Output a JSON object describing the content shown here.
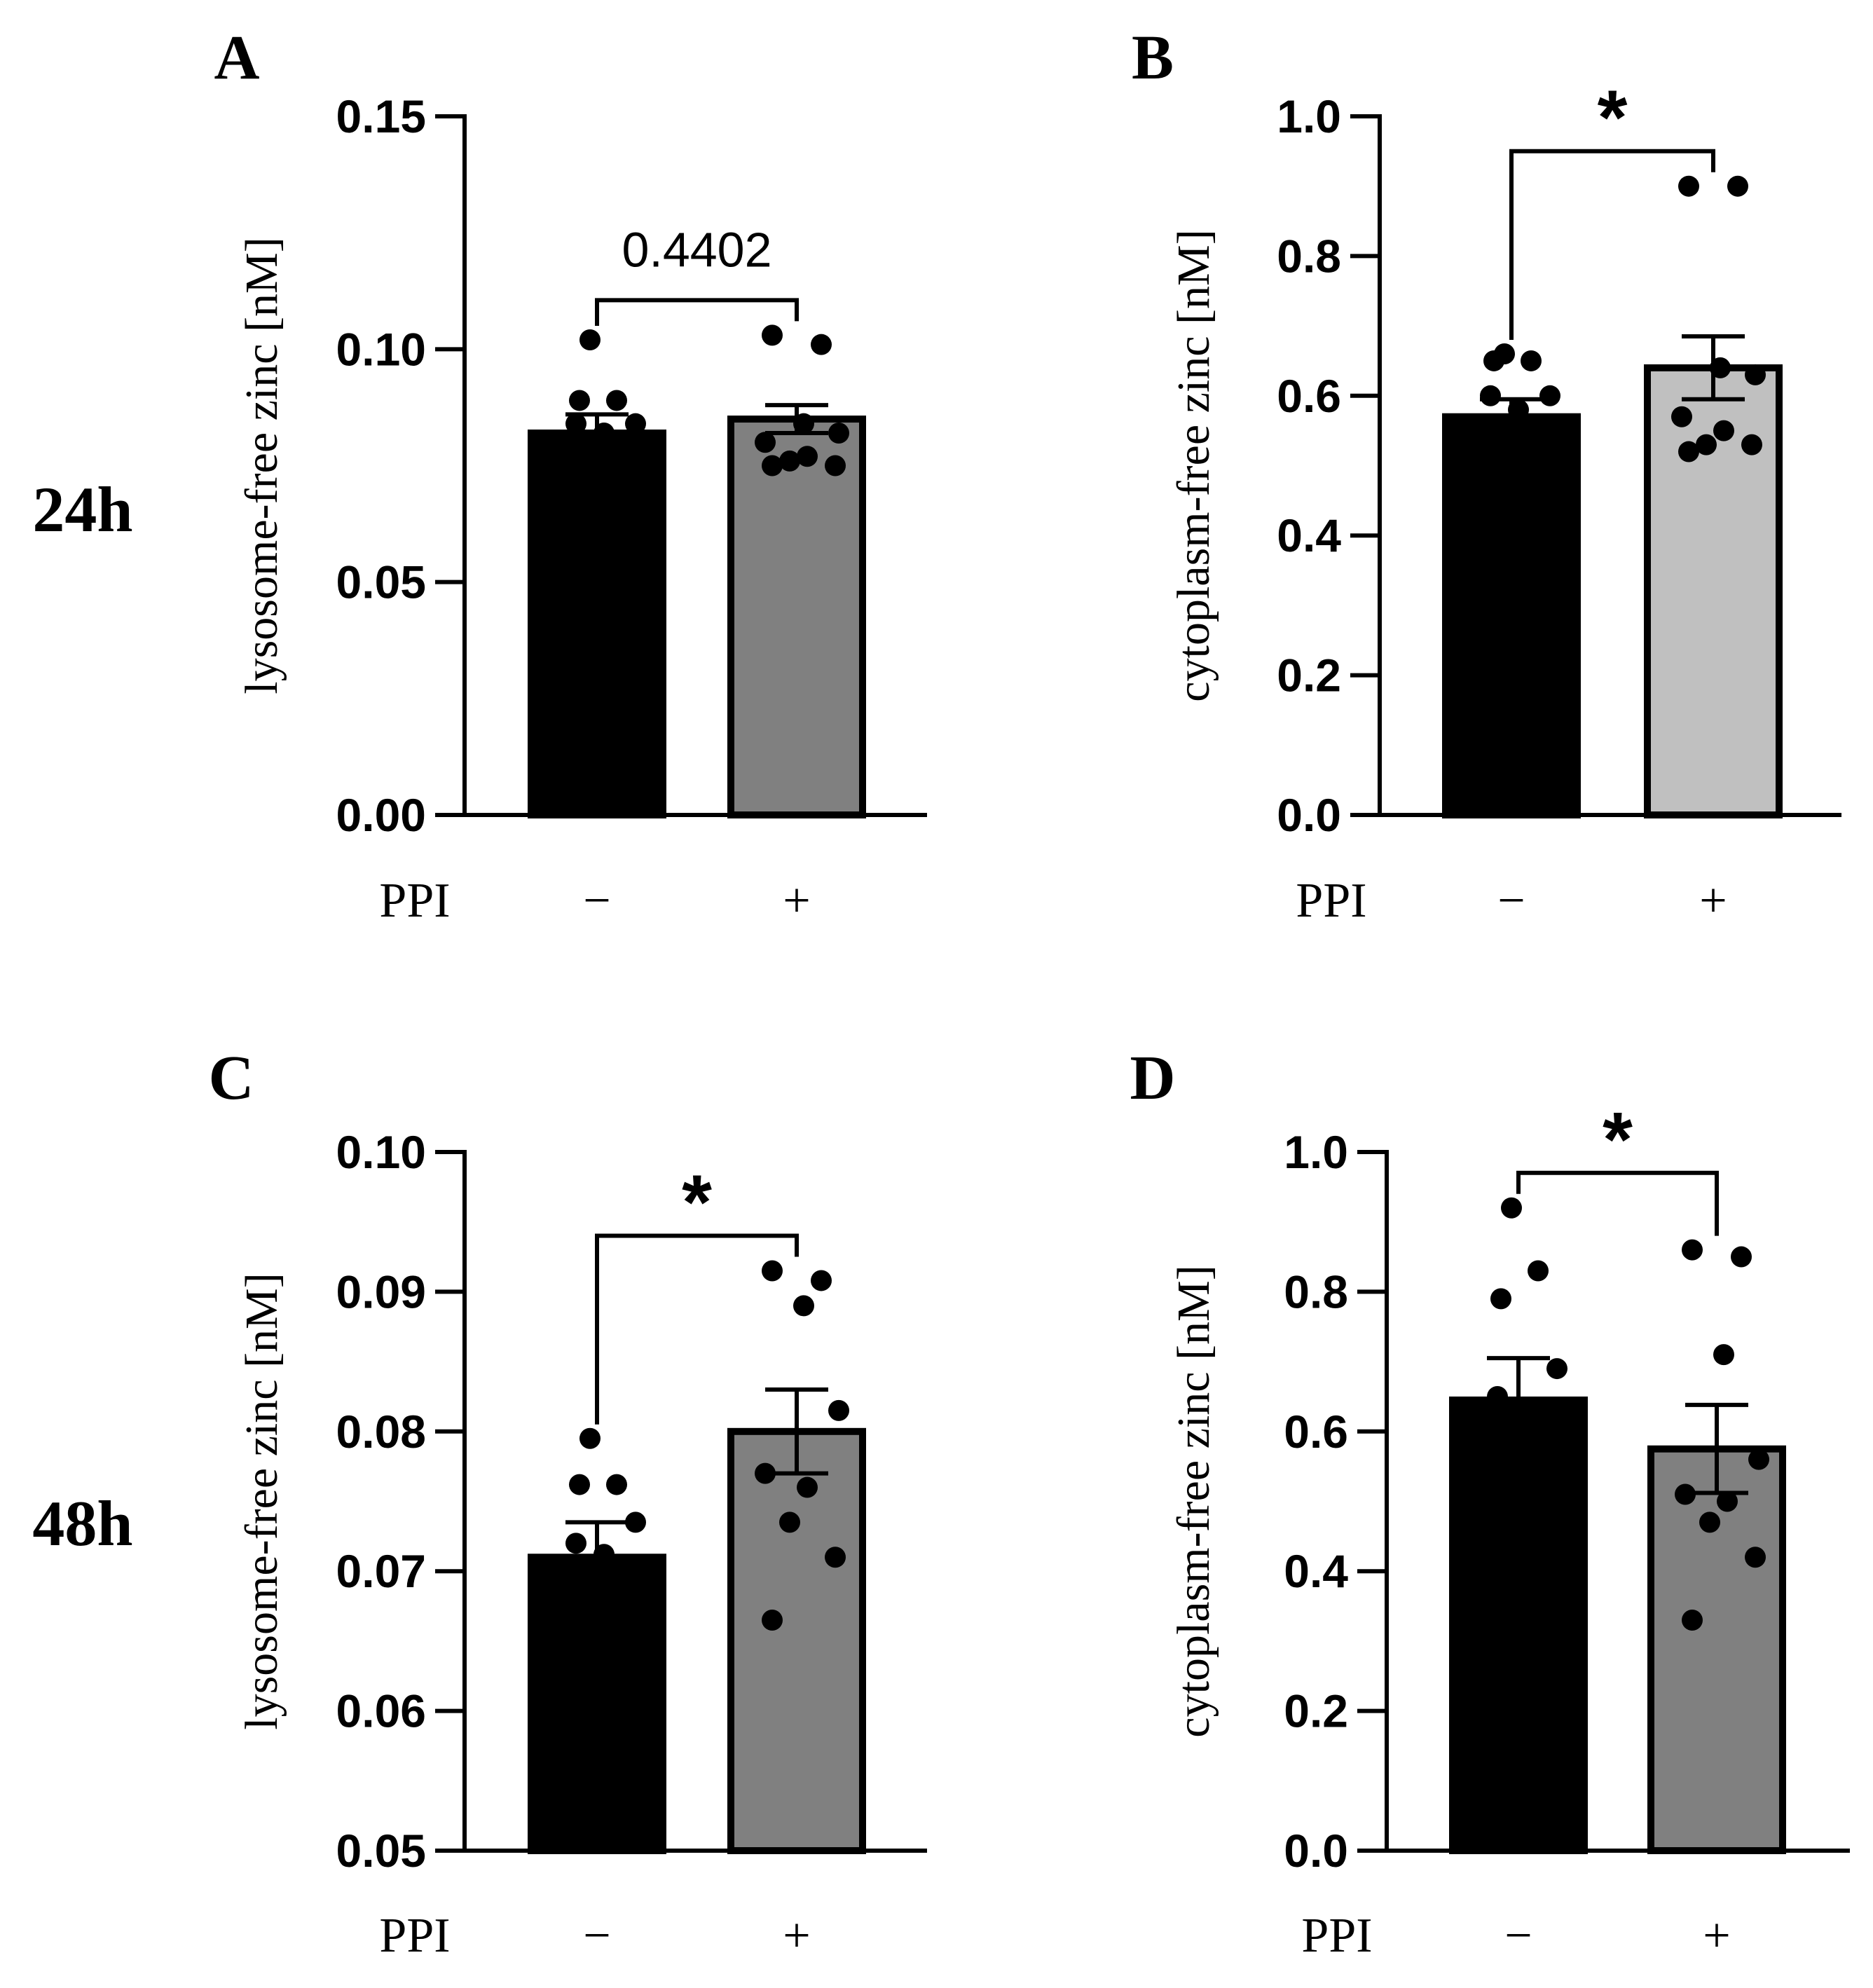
{
  "figure": {
    "row_labels": [
      "24h",
      "48h"
    ],
    "condition_label": "PPI",
    "condition_levels": [
      "−",
      "+"
    ]
  },
  "chart_data": [
    {
      "id": "A",
      "type": "bar",
      "panel_letter": "A",
      "ylabel": "lysosome-free zinc [nM]",
      "ylim": [
        0,
        0.15
      ],
      "yticks": [
        0.0,
        0.05,
        0.1,
        0.15
      ],
      "ytick_labels": [
        "0.00",
        "0.05",
        "0.10",
        "0.15"
      ],
      "categories": [
        "−",
        "+"
      ],
      "values": [
        0.082,
        0.085
      ],
      "errors": [
        0.004,
        0.003
      ],
      "bar_colors": [
        "#000000",
        "#808080"
      ],
      "points": [
        [
          0.102,
          0.089,
          0.089,
          0.084,
          0.084,
          0.082
        ],
        [
          0.103,
          0.101,
          0.084,
          0.082,
          0.08,
          0.077,
          0.076,
          0.075,
          0.075
        ]
      ],
      "significance": "0.4402"
    },
    {
      "id": "B",
      "type": "bar",
      "panel_letter": "B",
      "ylabel": "cytoplasm-free zinc  [nM]",
      "ylim": [
        0,
        1.0
      ],
      "yticks": [
        0.0,
        0.2,
        0.4,
        0.6,
        0.8,
        1.0
      ],
      "ytick_labels": [
        "0.0",
        "0.2",
        "0.4",
        "0.6",
        "0.8",
        "1.0"
      ],
      "categories": [
        "−",
        "+"
      ],
      "values": [
        0.57,
        0.64
      ],
      "errors": [
        0.025,
        0.045
      ],
      "bar_colors": [
        "#000000",
        "#c0c0c0"
      ],
      "points": [
        [
          0.66,
          0.65,
          0.65,
          0.6,
          0.6,
          0.58
        ],
        [
          0.9,
          0.9,
          0.64,
          0.63,
          0.57,
          0.55,
          0.53,
          0.53,
          0.52
        ]
      ],
      "significance": "*"
    },
    {
      "id": "C",
      "type": "bar",
      "panel_letter": "C",
      "ylabel": "lysosome-free zinc [nM]",
      "ylim": [
        0.05,
        0.1
      ],
      "yticks": [
        0.05,
        0.06,
        0.07,
        0.08,
        0.09,
        0.1
      ],
      "ytick_labels": [
        "0.05",
        "0.06",
        "0.07",
        "0.08",
        "0.09",
        "0.10"
      ],
      "categories": [
        "−",
        "+"
      ],
      "values": [
        0.071,
        0.08
      ],
      "errors": [
        0.0025,
        0.003
      ],
      "bar_colors": [
        "#000000",
        "#808080"
      ],
      "points": [
        [
          0.0795,
          0.0762,
          0.0762,
          0.0735,
          0.072,
          0.0712
        ],
        [
          0.0915,
          0.0908,
          0.089,
          0.0815,
          0.077,
          0.076,
          0.0735,
          0.071,
          0.0665
        ]
      ],
      "significance": "*"
    },
    {
      "id": "D",
      "type": "bar",
      "panel_letter": "D",
      "ylabel": "cytoplasm-free zinc [nM]",
      "ylim": [
        0,
        1.0
      ],
      "yticks": [
        0.0,
        0.2,
        0.4,
        0.6,
        0.8,
        1.0
      ],
      "ytick_labels": [
        "0.0",
        "0.2",
        "0.4",
        "0.6",
        "0.8",
        "1.0"
      ],
      "categories": [
        "−",
        "+"
      ],
      "values": [
        0.645,
        0.575
      ],
      "errors": [
        0.06,
        0.063
      ],
      "bar_colors": [
        "#000000",
        "#808080"
      ],
      "points": [
        [
          0.92,
          0.83,
          0.79,
          0.69,
          0.65,
          0.63
        ],
        [
          0.86,
          0.85,
          0.71,
          0.56,
          0.51,
          0.5,
          0.47,
          0.42,
          0.33
        ]
      ],
      "significance": "*"
    }
  ]
}
